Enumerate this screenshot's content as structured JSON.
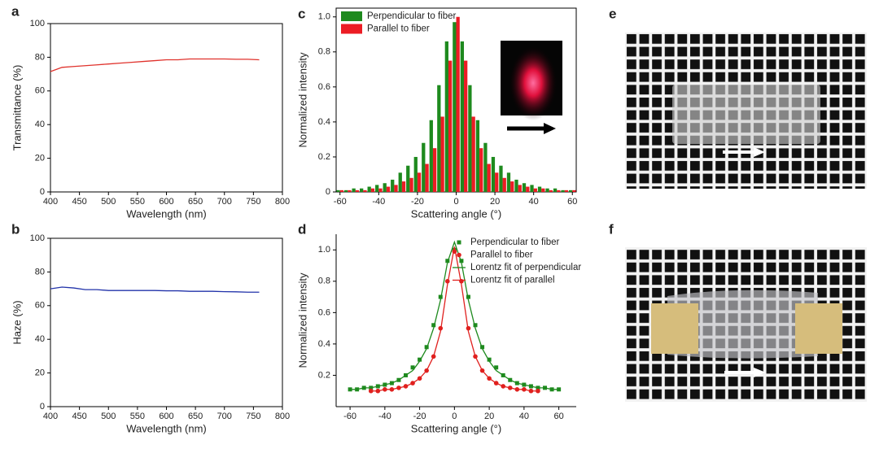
{
  "chart_data": [
    {
      "type": "line",
      "label": "a",
      "x_label": "Wavelength (nm)",
      "y_label": "Transmittance (%)",
      "x": [
        400,
        420,
        440,
        460,
        480,
        500,
        520,
        540,
        560,
        580,
        600,
        620,
        640,
        660,
        680,
        700,
        720,
        740,
        760
      ],
      "series": [
        {
          "color": "#e0322c",
          "values": [
            71.5,
            74,
            74.5,
            75,
            75.5,
            76,
            76.5,
            77,
            77.5,
            78,
            78.5,
            78.5,
            79,
            79,
            79,
            79,
            78.8,
            78.8,
            78.5
          ]
        }
      ],
      "xlim": [
        400,
        800
      ],
      "xticks": [
        400,
        450,
        500,
        550,
        600,
        650,
        700,
        750,
        800
      ],
      "ylim": [
        0,
        100
      ],
      "yticks": [
        0,
        20,
        40,
        60,
        80,
        100
      ]
    },
    {
      "type": "line",
      "label": "b",
      "x_label": "Wavelength (nm)",
      "y_label": "Haze (%)",
      "x": [
        400,
        420,
        440,
        460,
        480,
        500,
        520,
        540,
        560,
        580,
        600,
        620,
        640,
        660,
        680,
        700,
        720,
        740,
        760
      ],
      "series": [
        {
          "color": "#2233aa",
          "values": [
            70,
            71,
            70.5,
            69.5,
            69.5,
            69,
            69,
            69,
            69,
            69,
            68.8,
            68.8,
            68.5,
            68.5,
            68.5,
            68.3,
            68.2,
            68,
            68
          ]
        }
      ],
      "xlim": [
        400,
        800
      ],
      "xticks": [
        400,
        450,
        500,
        550,
        600,
        650,
        700,
        750,
        800
      ],
      "ylim": [
        0,
        100
      ],
      "yticks": [
        0,
        20,
        40,
        60,
        80,
        100
      ]
    },
    {
      "type": "bar",
      "label": "c",
      "x_label": "Scattering angle (°)",
      "y_label": "Normalized intensity",
      "legend": "upper left",
      "x": [
        -60,
        -56,
        -52,
        -48,
        -44,
        -40,
        -36,
        -32,
        -28,
        -24,
        -20,
        -16,
        -12,
        -8,
        -4,
        0,
        4,
        8,
        12,
        16,
        20,
        24,
        28,
        32,
        36,
        40,
        44,
        48,
        52,
        56,
        60
      ],
      "series": [
        {
          "name": "Perpendicular to fiber",
          "color": "#1e8a1e",
          "values": [
            0.01,
            0.01,
            0.02,
            0.02,
            0.03,
            0.04,
            0.05,
            0.07,
            0.11,
            0.15,
            0.2,
            0.28,
            0.41,
            0.61,
            0.86,
            0.97,
            0.86,
            0.61,
            0.41,
            0.28,
            0.2,
            0.15,
            0.11,
            0.07,
            0.05,
            0.04,
            0.03,
            0.02,
            0.02,
            0.01,
            0.01
          ]
        },
        {
          "name": "Parallel to fiber",
          "color": "#ec1c24",
          "values": [
            0.01,
            0.01,
            0.01,
            0.01,
            0.02,
            0.02,
            0.03,
            0.04,
            0.06,
            0.08,
            0.11,
            0.16,
            0.25,
            0.43,
            0.75,
            1.0,
            0.75,
            0.43,
            0.25,
            0.16,
            0.11,
            0.08,
            0.06,
            0.04,
            0.03,
            0.02,
            0.02,
            0.01,
            0.01,
            0.01,
            0.01
          ]
        }
      ],
      "xlim": [
        -62,
        62
      ],
      "xticks": [
        -60,
        -40,
        -20,
        0,
        20,
        40,
        60
      ],
      "ylim": [
        0,
        1.05
      ],
      "yticks": [
        0,
        0.2,
        0.4,
        0.6,
        0.8,
        {
          "value": 1,
          "label": "1.0"
        }
      ]
    },
    {
      "type": "scatter",
      "label": "d",
      "x_label": "Scattering angle (°)",
      "y_label": "Normalized intensity",
      "legend": "upper right",
      "x": [
        -60,
        -56,
        -52,
        -48,
        -44,
        -40,
        -36,
        -32,
        -28,
        -24,
        -20,
        -16,
        -12,
        -8,
        -4,
        0,
        4,
        8,
        12,
        16,
        20,
        24,
        28,
        32,
        36,
        40,
        44,
        48,
        52,
        56,
        60
      ],
      "series": [
        {
          "name": "Perpendicular to fiber",
          "color": "#1e8a1e",
          "style": "square",
          "values": [
            0.11,
            0.11,
            0.12,
            0.12,
            0.13,
            0.14,
            0.15,
            0.17,
            0.2,
            0.25,
            0.3,
            0.38,
            0.52,
            0.7,
            0.93,
            1.0,
            0.93,
            0.7,
            0.52,
            0.38,
            0.3,
            0.25,
            0.2,
            0.17,
            0.15,
            0.14,
            0.13,
            0.12,
            0.12,
            0.11,
            0.11
          ]
        },
        {
          "name": "Parallel to fiber",
          "color": "#e0201e",
          "style": "circle",
          "values": [
            null,
            null,
            null,
            0.1,
            0.1,
            0.11,
            0.11,
            0.12,
            0.13,
            0.15,
            0.18,
            0.23,
            0.32,
            0.5,
            0.8,
            0.99,
            0.8,
            0.5,
            0.32,
            0.23,
            0.18,
            0.15,
            0.13,
            0.12,
            0.11,
            0.11,
            0.1,
            0.1,
            null,
            null,
            null
          ]
        },
        {
          "name": "Lorentz fit of perpendicular",
          "color": "#1e8a1e",
          "style": "line",
          "values": [
            0.11,
            0.11,
            0.12,
            0.12,
            0.13,
            0.14,
            0.15,
            0.17,
            0.2,
            0.23,
            0.29,
            0.37,
            0.5,
            0.68,
            0.92,
            1.05,
            0.92,
            0.68,
            0.5,
            0.37,
            0.29,
            0.23,
            0.2,
            0.17,
            0.15,
            0.14,
            0.13,
            0.12,
            0.12,
            0.11,
            0.11
          ]
        },
        {
          "name": "Lorentz fit of parallel",
          "color": "#e0201e",
          "style": "line",
          "values": [
            null,
            null,
            null,
            0.1,
            0.1,
            0.11,
            0.11,
            0.12,
            0.13,
            0.15,
            0.18,
            0.23,
            0.32,
            0.48,
            0.78,
            1.02,
            0.78,
            0.48,
            0.32,
            0.23,
            0.18,
            0.15,
            0.13,
            0.12,
            0.11,
            0.11,
            0.1,
            0.1,
            null,
            null,
            null
          ]
        }
      ],
      "xlim": [
        -68,
        70
      ],
      "xticks": [
        -60,
        -40,
        -20,
        0,
        20,
        40,
        60
      ],
      "ylim": [
        0,
        1.1
      ],
      "yticks": [
        0.2,
        0.4,
        0.6,
        0.8,
        {
          "value": 1,
          "label": "1.0"
        }
      ]
    }
  ],
  "photos": [
    {
      "label": "e"
    },
    {
      "label": "f"
    }
  ]
}
